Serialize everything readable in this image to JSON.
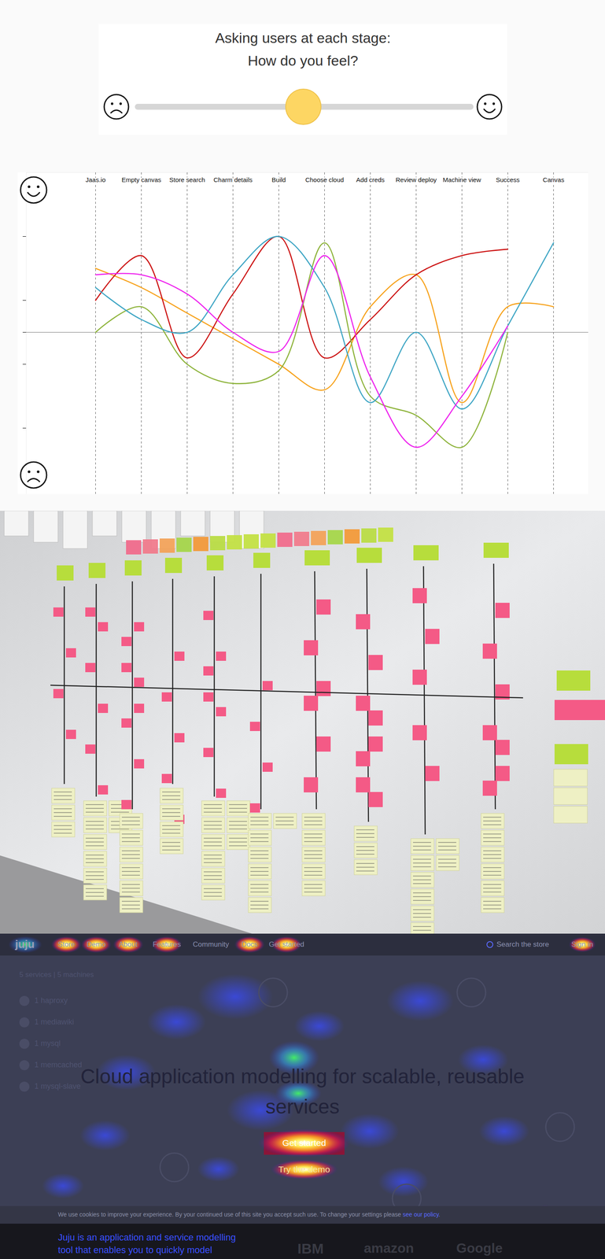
{
  "slider": {
    "title": [
      "Asking users at each stage:",
      "How do you feel?"
    ]
  },
  "chart_data": {
    "type": "line",
    "categories": [
      "Jaas.io",
      "Empty canvas",
      "Store search",
      "Charm details",
      "Build",
      "Choose cloud",
      "Add creds",
      "Review deploy",
      "Machine view",
      "Success",
      "Canvas"
    ],
    "series": [
      {
        "color": "#f7a21b",
        "values": [
          1.0,
          0.7,
          0.3,
          -0.1,
          -0.5,
          -0.9,
          0.4,
          0.9,
          -1.1,
          0.4,
          0.4
        ]
      },
      {
        "color": "#cc1111",
        "values": [
          0.5,
          1.2,
          -0.4,
          0.6,
          1.5,
          -0.4,
          0.2,
          0.9,
          1.2,
          1.3,
          null
        ]
      },
      {
        "color": "#8db33a",
        "values": [
          0,
          0.4,
          -0.5,
          -0.8,
          -0.6,
          1.4,
          -1.0,
          -1.3,
          -1.8,
          0,
          null
        ]
      },
      {
        "color": "#3da5c4",
        "values": [
          0.7,
          0.2,
          0,
          0.9,
          1.5,
          0.7,
          -1.1,
          0,
          -1.2,
          0.1,
          1.4
        ]
      },
      {
        "color": "#ee22ee",
        "values": [
          0.9,
          0.9,
          0.6,
          0,
          -0.3,
          1.2,
          -0.7,
          -1.8,
          -1.0,
          0.1,
          null
        ]
      }
    ],
    "ylim": [
      -2.5,
      2.5
    ],
    "yticks": [
      -1.5,
      -0.5,
      0,
      0.5,
      1.5
    ],
    "tick_labels": "x"
  },
  "heatmap_screenshot": {
    "logo": "juju",
    "nav": [
      "Store",
      "Demo",
      "About",
      "Features",
      "Community",
      "Docs",
      "Get started"
    ],
    "search": "Search the store",
    "sign_in": "Sign in",
    "sidebar": {
      "header": "5 services | 5 machines",
      "items": [
        "1 haproxy",
        "1 mediawiki",
        "1 mysql",
        "1 memcached",
        "1 mysql-slave"
      ]
    },
    "headline": "Cloud application modelling for scalable, reusable services",
    "buttons": [
      "Get started",
      "Try the demo"
    ],
    "cookie_notice": "We use cookies to improve your experience. By your continued use of this site you accept such use. To change your settings please",
    "cookie_link": "see our policy.",
    "footer_text": "Juju is an application and service modelling tool that enables you to quickly model",
    "logos": [
      "IBM",
      "amazon",
      "Google"
    ]
  }
}
